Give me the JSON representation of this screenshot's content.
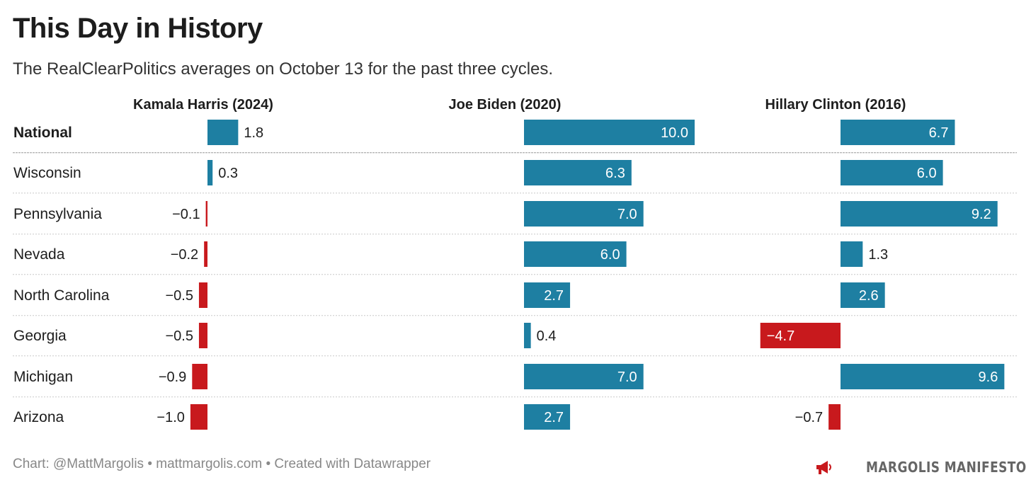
{
  "title": "This Day in History",
  "subtitle": "The RealClearPolitics averages on October 13 for the past three cycles.",
  "footer": "Chart: @MattMargolis • mattmargolis.com • Created with Datawrapper",
  "brand": "MARGOLIS MANIFESTO",
  "colors": {
    "positive": "#1e7fa2",
    "negative": "#c8191d",
    "text": "#1d1d1d",
    "grid": "#c8c8c8"
  },
  "chart_data": {
    "type": "bar",
    "categories": [
      "National",
      "Wisconsin",
      "Pennsylvania",
      "Nevada",
      "North Carolina",
      "Georgia",
      "Michigan",
      "Arizona"
    ],
    "series": [
      {
        "name": "Kamala Harris (2024)",
        "values": [
          1.8,
          0.3,
          -0.1,
          -0.2,
          -0.5,
          -0.5,
          -0.9,
          -1.0
        ]
      },
      {
        "name": "Joe Biden (2020)",
        "values": [
          10.0,
          6.3,
          7.0,
          6.0,
          2.7,
          0.4,
          7.0,
          2.7
        ]
      },
      {
        "name": "Hillary Clinton (2016)",
        "values": [
          6.7,
          6.0,
          9.2,
          1.3,
          2.6,
          -4.7,
          9.6,
          -0.7
        ]
      }
    ],
    "value_labels": [
      [
        "1.8",
        "0.3",
        "−0.1",
        "−0.2",
        "−0.5",
        "−0.5",
        "−0.9",
        "−1.0"
      ],
      [
        "10.0",
        "6.3",
        "7.0",
        "6.0",
        "2.7",
        "0.4",
        "7.0",
        "2.7"
      ],
      [
        "6.7",
        "6.0",
        "9.2",
        "1.3",
        "2.6",
        "−4.7",
        "9.6",
        "−0.7"
      ]
    ],
    "grid": false,
    "legend": "none"
  }
}
